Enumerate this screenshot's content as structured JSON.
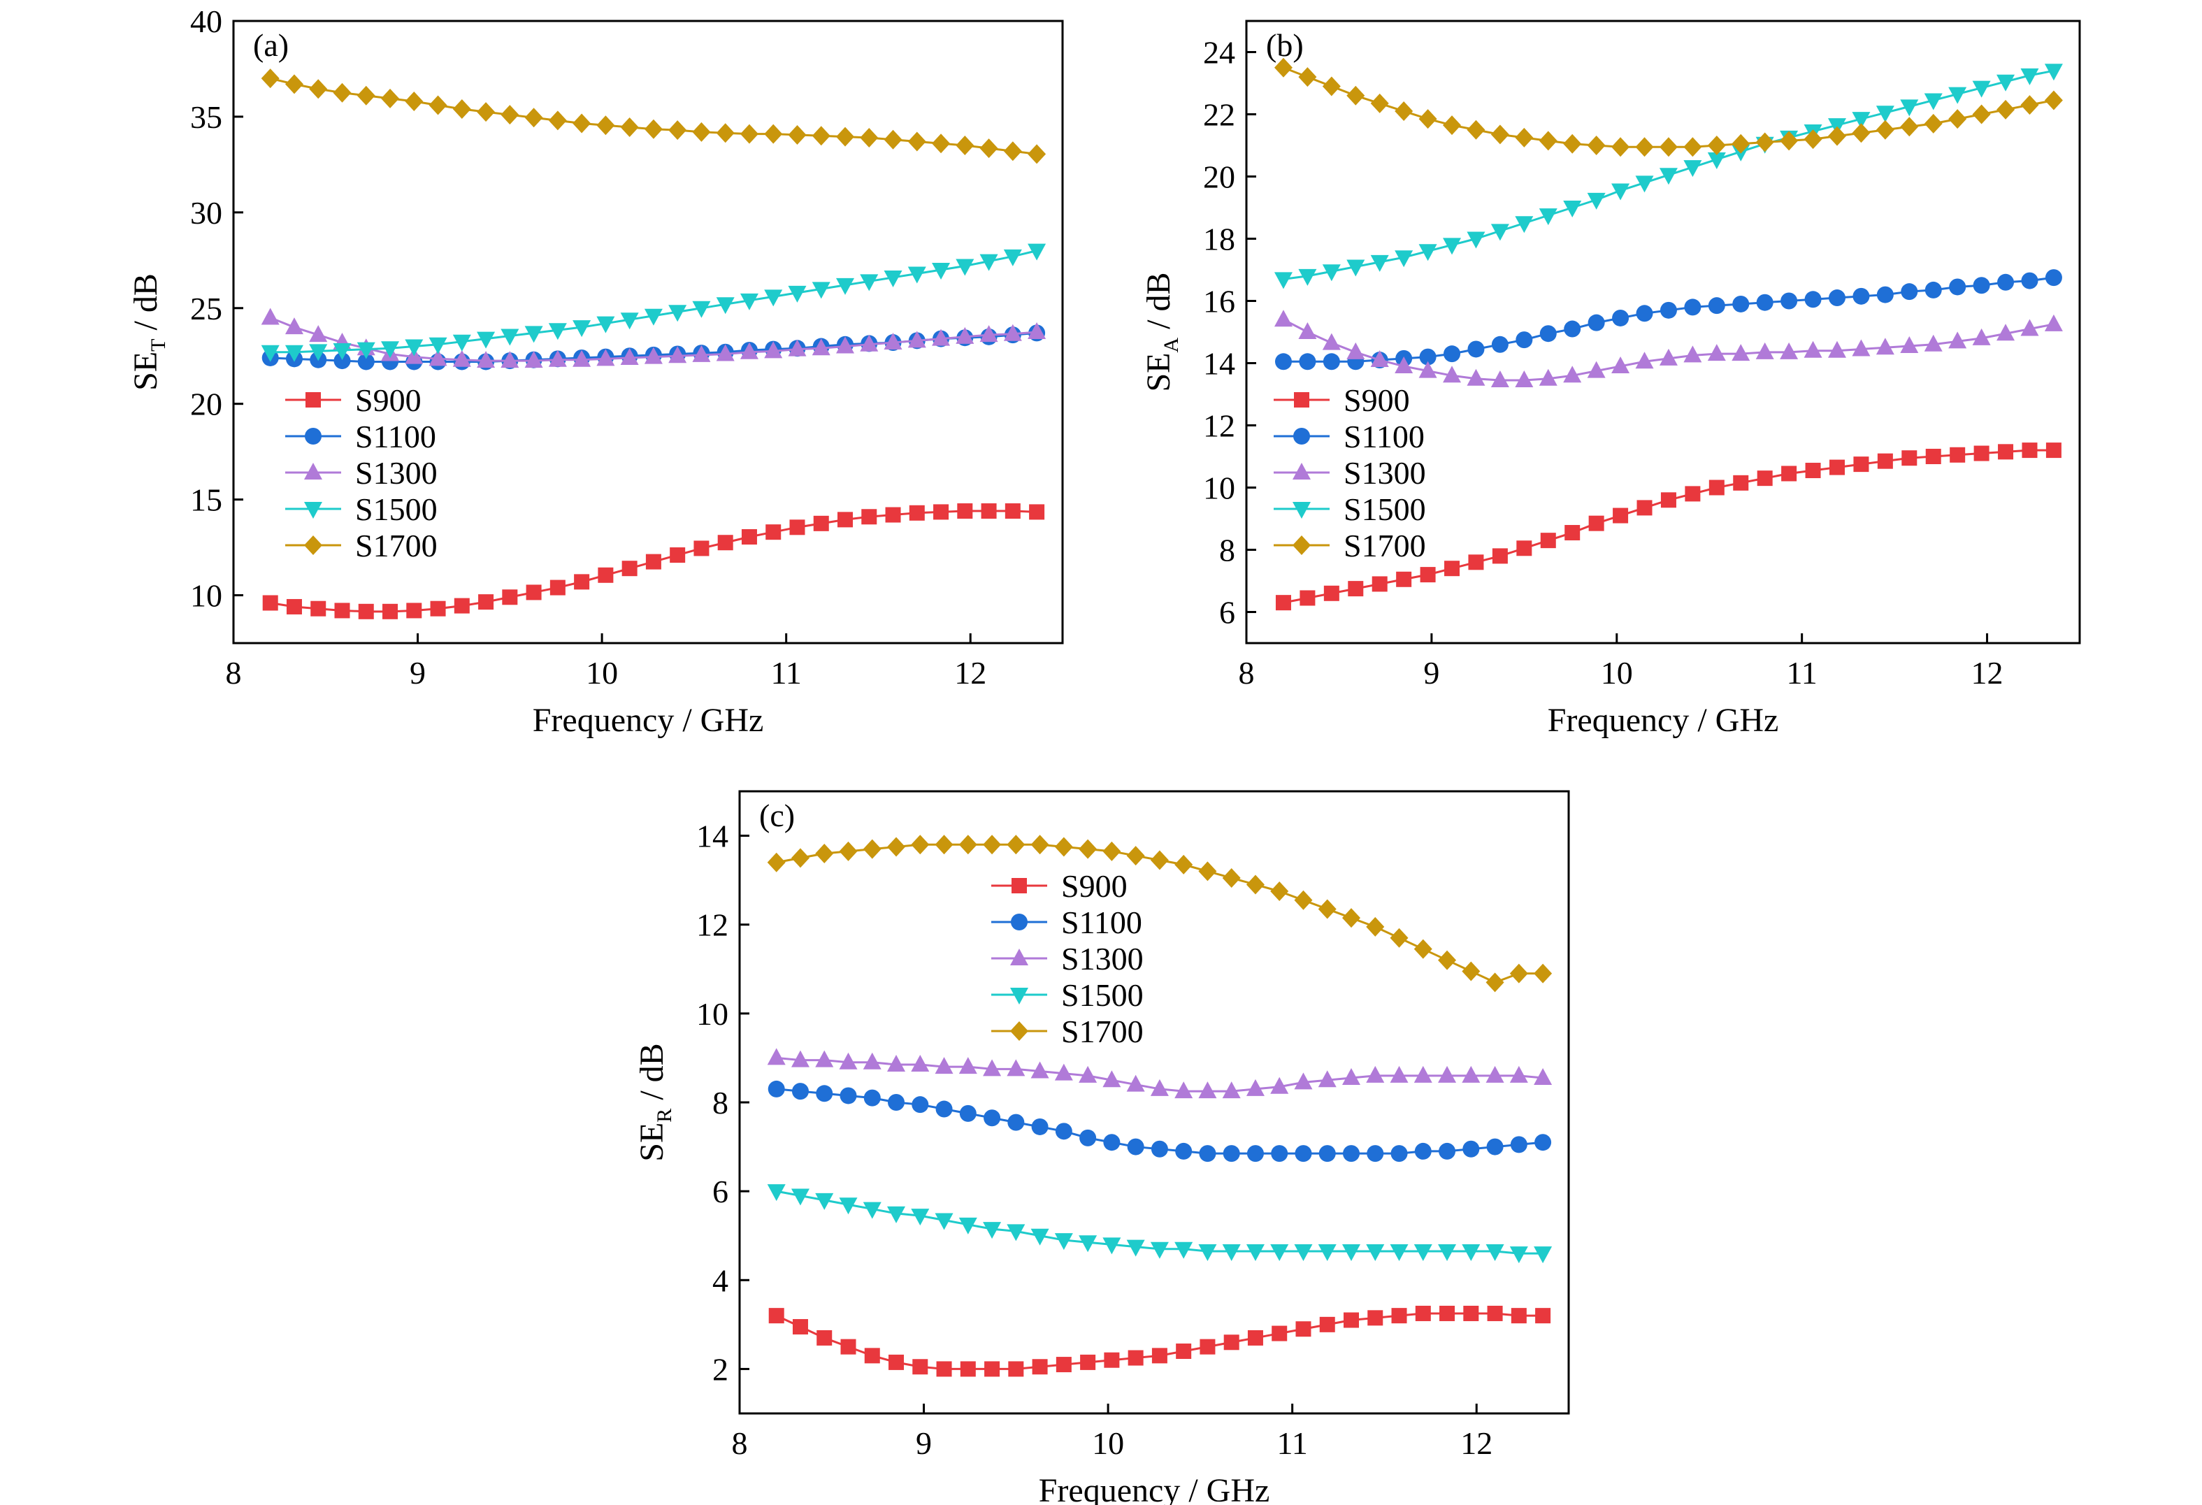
{
  "figure": {
    "colors": {
      "S900": "#e8383d",
      "S1100": "#1f6fd6",
      "S1300": "#b07ad8",
      "S1500": "#1ecbcb",
      "S1700": "#c9960c"
    },
    "markers": {
      "S900": "square",
      "S1100": "circle",
      "S1300": "triangle-up",
      "S1500": "triangle-down",
      "S1700": "diamond"
    }
  },
  "chart_data": [
    {
      "panel": "(a)",
      "type": "line",
      "xlabel": "Frequency / GHz",
      "ylabel_main": "SE",
      "ylabel_sub": "T",
      "ylabel_suffix": " / dB",
      "xlim": [
        8,
        12.5
      ],
      "ylim": [
        7.5,
        40
      ],
      "xticks": [
        "8",
        "9",
        "10",
        "11",
        "12"
      ],
      "yticks": [
        "10",
        "15",
        "20",
        "25",
        "30",
        "35",
        "40"
      ],
      "x": [
        8.2,
        8.33,
        8.46,
        8.59,
        8.72,
        8.85,
        8.98,
        9.11,
        9.24,
        9.37,
        9.5,
        9.63,
        9.76,
        9.89,
        10.02,
        10.15,
        10.28,
        10.41,
        10.54,
        10.67,
        10.8,
        10.93,
        11.06,
        11.19,
        11.32,
        11.45,
        11.58,
        11.71,
        11.84,
        11.97,
        12.1,
        12.23,
        12.36
      ],
      "series": [
        {
          "name": "S900",
          "values": [
            9.6,
            9.4,
            9.3,
            9.2,
            9.15,
            9.15,
            9.2,
            9.3,
            9.45,
            9.65,
            9.9,
            10.15,
            10.4,
            10.7,
            11.05,
            11.4,
            11.75,
            12.1,
            12.45,
            12.75,
            13.05,
            13.3,
            13.55,
            13.75,
            13.95,
            14.1,
            14.2,
            14.3,
            14.35,
            14.4,
            14.4,
            14.4,
            14.35
          ]
        },
        {
          "name": "S1100",
          "values": [
            22.4,
            22.35,
            22.3,
            22.25,
            22.2,
            22.2,
            22.2,
            22.2,
            22.2,
            22.2,
            22.25,
            22.3,
            22.35,
            22.4,
            22.45,
            22.5,
            22.55,
            22.6,
            22.65,
            22.7,
            22.8,
            22.85,
            22.9,
            23.0,
            23.1,
            23.15,
            23.2,
            23.3,
            23.4,
            23.45,
            23.5,
            23.6,
            23.7
          ]
        },
        {
          "name": "S1300",
          "values": [
            24.5,
            24.0,
            23.6,
            23.2,
            22.9,
            22.6,
            22.45,
            22.35,
            22.3,
            22.25,
            22.25,
            22.25,
            22.3,
            22.3,
            22.35,
            22.4,
            22.45,
            22.5,
            22.55,
            22.6,
            22.7,
            22.75,
            22.85,
            22.9,
            23.0,
            23.1,
            23.2,
            23.3,
            23.4,
            23.5,
            23.6,
            23.65,
            23.75
          ]
        },
        {
          "name": "S1500",
          "values": [
            22.7,
            22.7,
            22.75,
            22.8,
            22.85,
            22.9,
            23.0,
            23.1,
            23.25,
            23.4,
            23.55,
            23.7,
            23.85,
            24.0,
            24.2,
            24.4,
            24.6,
            24.8,
            25.0,
            25.2,
            25.4,
            25.6,
            25.8,
            26.0,
            26.2,
            26.4,
            26.6,
            26.8,
            27.0,
            27.2,
            27.45,
            27.7,
            28.0
          ]
        },
        {
          "name": "S1700",
          "values": [
            37.0,
            36.7,
            36.45,
            36.25,
            36.1,
            35.95,
            35.8,
            35.6,
            35.4,
            35.25,
            35.1,
            34.95,
            34.8,
            34.65,
            34.55,
            34.45,
            34.35,
            34.3,
            34.2,
            34.15,
            34.1,
            34.1,
            34.05,
            34.0,
            33.95,
            33.9,
            33.8,
            33.7,
            33.6,
            33.5,
            33.35,
            33.2,
            33.05
          ]
        }
      ],
      "legend_position": "lower-left"
    },
    {
      "panel": "(b)",
      "type": "line",
      "xlabel": "Frequency / GHz",
      "ylabel_main": "SE",
      "ylabel_sub": "A",
      "ylabel_suffix": " / dB",
      "xlim": [
        8,
        12.5
      ],
      "ylim": [
        5,
        25
      ],
      "xticks": [
        "8",
        "9",
        "10",
        "11",
        "12"
      ],
      "yticks": [
        "6",
        "8",
        "10",
        "12",
        "14",
        "16",
        "18",
        "20",
        "22",
        "24"
      ],
      "x": [
        8.2,
        8.33,
        8.46,
        8.59,
        8.72,
        8.85,
        8.98,
        9.11,
        9.24,
        9.37,
        9.5,
        9.63,
        9.76,
        9.89,
        10.02,
        10.15,
        10.28,
        10.41,
        10.54,
        10.67,
        10.8,
        10.93,
        11.06,
        11.19,
        11.32,
        11.45,
        11.58,
        11.71,
        11.84,
        11.97,
        12.1,
        12.23,
        12.36
      ],
      "series": [
        {
          "name": "S900",
          "values": [
            6.3,
            6.45,
            6.6,
            6.75,
            6.9,
            7.05,
            7.2,
            7.4,
            7.6,
            7.8,
            8.05,
            8.3,
            8.55,
            8.85,
            9.1,
            9.35,
            9.6,
            9.8,
            10.0,
            10.15,
            10.3,
            10.45,
            10.55,
            10.65,
            10.75,
            10.85,
            10.95,
            11.0,
            11.05,
            11.1,
            11.15,
            11.2,
            11.2
          ]
        },
        {
          "name": "S1100",
          "values": [
            14.05,
            14.05,
            14.05,
            14.05,
            14.1,
            14.15,
            14.2,
            14.3,
            14.45,
            14.6,
            14.75,
            14.95,
            15.1,
            15.3,
            15.45,
            15.6,
            15.7,
            15.8,
            15.85,
            15.9,
            15.95,
            16.0,
            16.05,
            16.1,
            16.15,
            16.2,
            16.3,
            16.35,
            16.45,
            16.5,
            16.6,
            16.65,
            16.75
          ]
        },
        {
          "name": "S1300",
          "values": [
            15.4,
            15.0,
            14.65,
            14.35,
            14.1,
            13.9,
            13.75,
            13.6,
            13.5,
            13.45,
            13.45,
            13.5,
            13.6,
            13.75,
            13.9,
            14.05,
            14.15,
            14.25,
            14.3,
            14.3,
            14.35,
            14.35,
            14.4,
            14.4,
            14.45,
            14.5,
            14.55,
            14.6,
            14.7,
            14.8,
            14.95,
            15.1,
            15.25
          ]
        },
        {
          "name": "S1500",
          "values": [
            16.7,
            16.8,
            16.95,
            17.1,
            17.25,
            17.4,
            17.6,
            17.8,
            18.0,
            18.25,
            18.5,
            18.75,
            19.0,
            19.25,
            19.55,
            19.8,
            20.05,
            20.3,
            20.55,
            20.8,
            21.05,
            21.25,
            21.45,
            21.65,
            21.85,
            22.05,
            22.25,
            22.45,
            22.65,
            22.85,
            23.05,
            23.25,
            23.4
          ]
        },
        {
          "name": "S1700",
          "values": [
            23.5,
            23.2,
            22.9,
            22.6,
            22.35,
            22.1,
            21.85,
            21.65,
            21.5,
            21.35,
            21.25,
            21.15,
            21.05,
            21.0,
            20.95,
            20.95,
            20.95,
            20.95,
            21.0,
            21.05,
            21.1,
            21.15,
            21.2,
            21.3,
            21.4,
            21.5,
            21.6,
            21.7,
            21.85,
            22.0,
            22.15,
            22.3,
            22.45
          ]
        }
      ],
      "legend_position": "lower-left"
    },
    {
      "panel": "(c)",
      "type": "line",
      "xlabel": "Frequency / GHz",
      "ylabel_main": "SE",
      "ylabel_sub": "R",
      "ylabel_suffix": " / dB",
      "xlim": [
        8,
        12.5
      ],
      "ylim": [
        1,
        15
      ],
      "xticks": [
        "8",
        "9",
        "10",
        "11",
        "12"
      ],
      "yticks": [
        "2",
        "4",
        "6",
        "8",
        "10",
        "12",
        "14"
      ],
      "x": [
        8.2,
        8.33,
        8.46,
        8.59,
        8.72,
        8.85,
        8.98,
        9.11,
        9.24,
        9.37,
        9.5,
        9.63,
        9.76,
        9.89,
        10.02,
        10.15,
        10.28,
        10.41,
        10.54,
        10.67,
        10.8,
        10.93,
        11.06,
        11.19,
        11.32,
        11.45,
        11.58,
        11.71,
        11.84,
        11.97,
        12.1,
        12.23,
        12.36
      ],
      "series": [
        {
          "name": "S900",
          "values": [
            3.2,
            2.95,
            2.7,
            2.5,
            2.3,
            2.15,
            2.05,
            2.0,
            2.0,
            2.0,
            2.0,
            2.05,
            2.1,
            2.15,
            2.2,
            2.25,
            2.3,
            2.4,
            2.5,
            2.6,
            2.7,
            2.8,
            2.9,
            3.0,
            3.1,
            3.15,
            3.2,
            3.25,
            3.25,
            3.25,
            3.25,
            3.2,
            3.2
          ]
        },
        {
          "name": "S1100",
          "values": [
            8.3,
            8.25,
            8.2,
            8.15,
            8.1,
            8.0,
            7.95,
            7.85,
            7.75,
            7.65,
            7.55,
            7.45,
            7.35,
            7.2,
            7.1,
            7.0,
            6.95,
            6.9,
            6.85,
            6.85,
            6.85,
            6.85,
            6.85,
            6.85,
            6.85,
            6.85,
            6.85,
            6.9,
            6.9,
            6.95,
            7.0,
            7.05,
            7.1
          ]
        },
        {
          "name": "S1300",
          "values": [
            9.0,
            8.95,
            8.95,
            8.9,
            8.9,
            8.85,
            8.85,
            8.8,
            8.8,
            8.75,
            8.75,
            8.7,
            8.65,
            8.6,
            8.5,
            8.4,
            8.3,
            8.25,
            8.25,
            8.25,
            8.3,
            8.35,
            8.45,
            8.5,
            8.55,
            8.6,
            8.6,
            8.6,
            8.6,
            8.6,
            8.6,
            8.6,
            8.55
          ]
        },
        {
          "name": "S1500",
          "values": [
            6.0,
            5.9,
            5.8,
            5.7,
            5.6,
            5.5,
            5.45,
            5.35,
            5.25,
            5.15,
            5.1,
            5.0,
            4.9,
            4.85,
            4.8,
            4.75,
            4.7,
            4.7,
            4.65,
            4.65,
            4.65,
            4.65,
            4.65,
            4.65,
            4.65,
            4.65,
            4.65,
            4.65,
            4.65,
            4.65,
            4.65,
            4.6,
            4.6
          ]
        },
        {
          "name": "S1700",
          "values": [
            13.4,
            13.5,
            13.6,
            13.65,
            13.7,
            13.75,
            13.8,
            13.8,
            13.8,
            13.8,
            13.8,
            13.8,
            13.75,
            13.7,
            13.65,
            13.55,
            13.45,
            13.35,
            13.2,
            13.05,
            12.9,
            12.75,
            12.55,
            12.35,
            12.15,
            11.95,
            11.7,
            11.45,
            11.2,
            10.95,
            10.7,
            10.9,
            10.9
          ]
        }
      ],
      "legend_position": "upper-center"
    }
  ]
}
